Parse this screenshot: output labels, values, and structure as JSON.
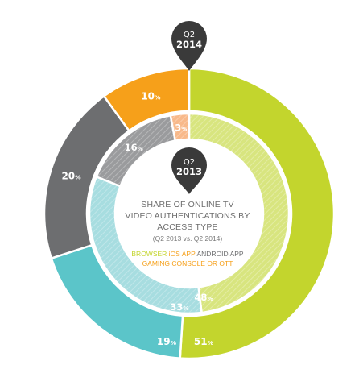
{
  "colors": {
    "browser": "#c3d52d",
    "ios": "#5bc5c9",
    "android": "#6d6e70",
    "console": "#f6a01a",
    "browser_inner": "#d8e57f",
    "ios_inner": "#a7dde0",
    "android_inner": "#9a9b9d",
    "console_inner": "#f8b98a",
    "pin": "#3a3a3a"
  },
  "center": {
    "title_lines": [
      "SHARE OF ONLINE TV",
      "VIDEO AUTHENTICATIONS BY",
      "ACCESS TYPE"
    ],
    "subtitle": "(Q2 2013 vs. Q2 2014)"
  },
  "legend": {
    "line1": [
      {
        "text": "BROWSER",
        "color_key": "browser"
      },
      {
        "text": "iOS APP",
        "color_key": "console"
      },
      {
        "text": "ANDROID APP",
        "color_key": "android"
      }
    ],
    "line2": [
      {
        "text": "GAMING CONSOLE OR OTT",
        "color_key": "console"
      }
    ]
  },
  "pins": {
    "outer": {
      "line1": "Q2",
      "line2": "2014"
    },
    "inner": {
      "line1": "Q2",
      "line2": "2013"
    }
  },
  "chart_data": {
    "type": "pie",
    "categories": [
      "BROWSER",
      "iOS APP",
      "ANDROID APP",
      "GAMING CONSOLE OR OTT"
    ],
    "series": [
      {
        "name": "Q2 2014",
        "values": [
          51,
          19,
          20,
          10
        ],
        "labels": [
          "51",
          "19",
          "20",
          "10"
        ]
      },
      {
        "name": "Q2 2013",
        "values": [
          48,
          33,
          16,
          3
        ],
        "labels": [
          "48",
          "33",
          "16",
          "3"
        ]
      }
    ],
    "unit": "%"
  }
}
